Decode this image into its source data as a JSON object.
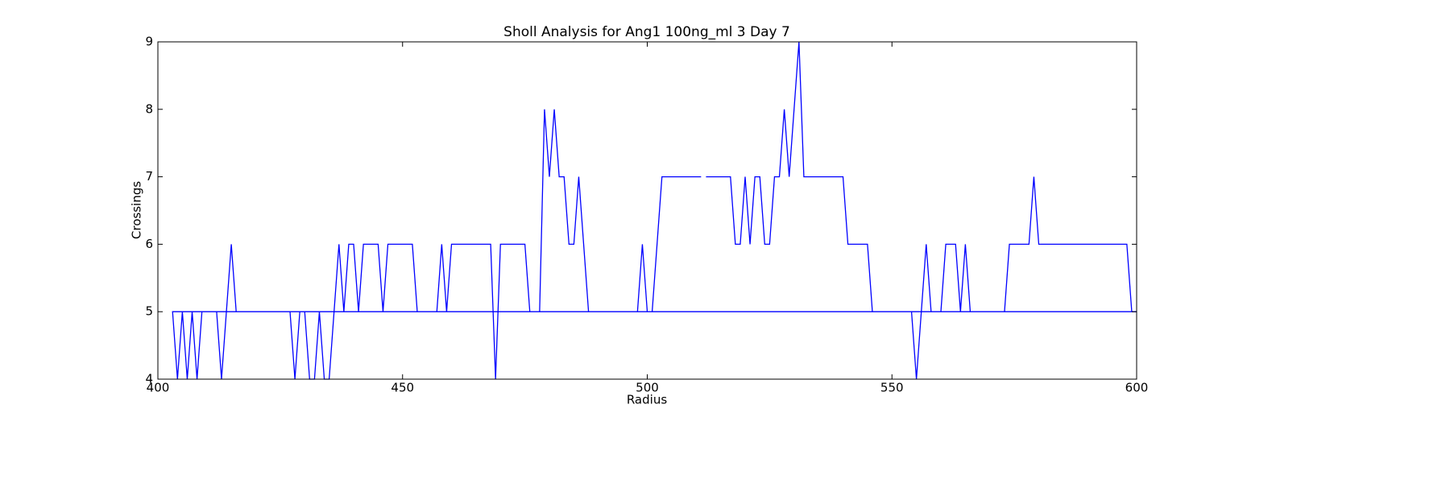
{
  "chart_data": {
    "type": "line",
    "title": "Sholl Analysis for Ang1 100ng_ml 3 Day 7",
    "xlabel": "Radius",
    "ylabel": "Crossings",
    "color": "#0000ff",
    "x": [
      512,
      513,
      514,
      515,
      516,
      517,
      518,
      519,
      520,
      521,
      522,
      523,
      524,
      525,
      526,
      527,
      528,
      529,
      530,
      531,
      532,
      533,
      534,
      535,
      536,
      537,
      538,
      539,
      540,
      541,
      542,
      543,
      544,
      545,
      546,
      547,
      548,
      549,
      550,
      551,
      552,
      553,
      554,
      555,
      556,
      557,
      558,
      559,
      560,
      561,
      562,
      563,
      564,
      565,
      566,
      567,
      568,
      569,
      570,
      571,
      572,
      573,
      574,
      575,
      576,
      577,
      578,
      579,
      580,
      581,
      582,
      583,
      584,
      585,
      586,
      587,
      588,
      589,
      590,
      591,
      592,
      593,
      594,
      595,
      596,
      597,
      598,
      599,
      600,
      403,
      404,
      405,
      406,
      407,
      408,
      409,
      410,
      411,
      412,
      413,
      414,
      415,
      416,
      417,
      418,
      419,
      420,
      421,
      422,
      423,
      424,
      425,
      426,
      427,
      428,
      429,
      430,
      431,
      432,
      433,
      434,
      435,
      436,
      437,
      438,
      439,
      440,
      441,
      442,
      443,
      444,
      445,
      446,
      447,
      448,
      449,
      450,
      451,
      452,
      453,
      454,
      455,
      456,
      457,
      458,
      459,
      460,
      461,
      462,
      463,
      464,
      465,
      466,
      467,
      468,
      469,
      470,
      471,
      472,
      473,
      474,
      475,
      476,
      477,
      478,
      479,
      480,
      481,
      482,
      483,
      484,
      485,
      486,
      487,
      488,
      489,
      490,
      491,
      492,
      493,
      494,
      495,
      496,
      497,
      498,
      499,
      500,
      501,
      502,
      503,
      504,
      505,
      506,
      507,
      508,
      509,
      510,
      511
    ],
    "values": [
      7,
      7,
      7,
      7,
      7,
      7,
      6,
      6,
      7,
      6,
      7,
      7,
      6,
      6,
      7,
      7,
      8,
      7,
      8,
      9,
      7,
      7,
      7,
      7,
      7,
      7,
      7,
      7,
      7,
      6,
      6,
      6,
      6,
      6,
      5,
      5,
      5,
      5,
      5,
      5,
      5,
      5,
      5,
      4,
      5,
      6,
      5,
      5,
      5,
      6,
      6,
      6,
      5,
      6,
      5,
      5,
      5,
      5,
      5,
      5,
      5,
      5,
      6,
      6,
      6,
      6,
      6,
      7,
      6,
      6,
      6,
      6,
      6,
      6,
      6,
      6,
      6,
      6,
      6,
      6,
      6,
      6,
      6,
      6,
      6,
      6,
      6,
      5,
      5,
      5,
      4,
      5,
      4,
      5,
      4,
      5,
      5,
      5,
      5,
      4,
      5,
      6,
      5,
      5,
      5,
      5,
      5,
      5,
      5,
      5,
      5,
      5,
      5,
      5,
      4,
      5,
      5,
      4,
      4,
      5,
      4,
      4,
      5,
      6,
      5,
      6,
      6,
      5,
      6,
      6,
      6,
      6,
      5,
      6,
      6,
      6,
      6,
      6,
      6,
      5,
      5,
      5,
      5,
      5,
      6,
      5,
      6,
      6,
      6,
      6,
      6,
      6,
      6,
      6,
      6,
      4,
      6,
      6,
      6,
      6,
      6,
      6,
      5,
      5,
      5,
      8,
      7,
      8,
      7,
      7,
      6,
      6,
      7,
      6,
      5,
      5,
      5,
      5,
      5,
      5,
      5,
      5,
      5,
      5,
      5,
      6,
      5,
      5,
      6,
      7,
      7,
      7,
      7,
      7,
      7,
      7,
      7,
      7
    ],
    "xlim": [
      400,
      600
    ],
    "xticks": [
      400,
      450,
      500,
      550,
      600
    ],
    "ylim": [
      4,
      9
    ],
    "yticks": [
      4,
      5,
      6,
      7,
      8,
      9
    ]
  }
}
